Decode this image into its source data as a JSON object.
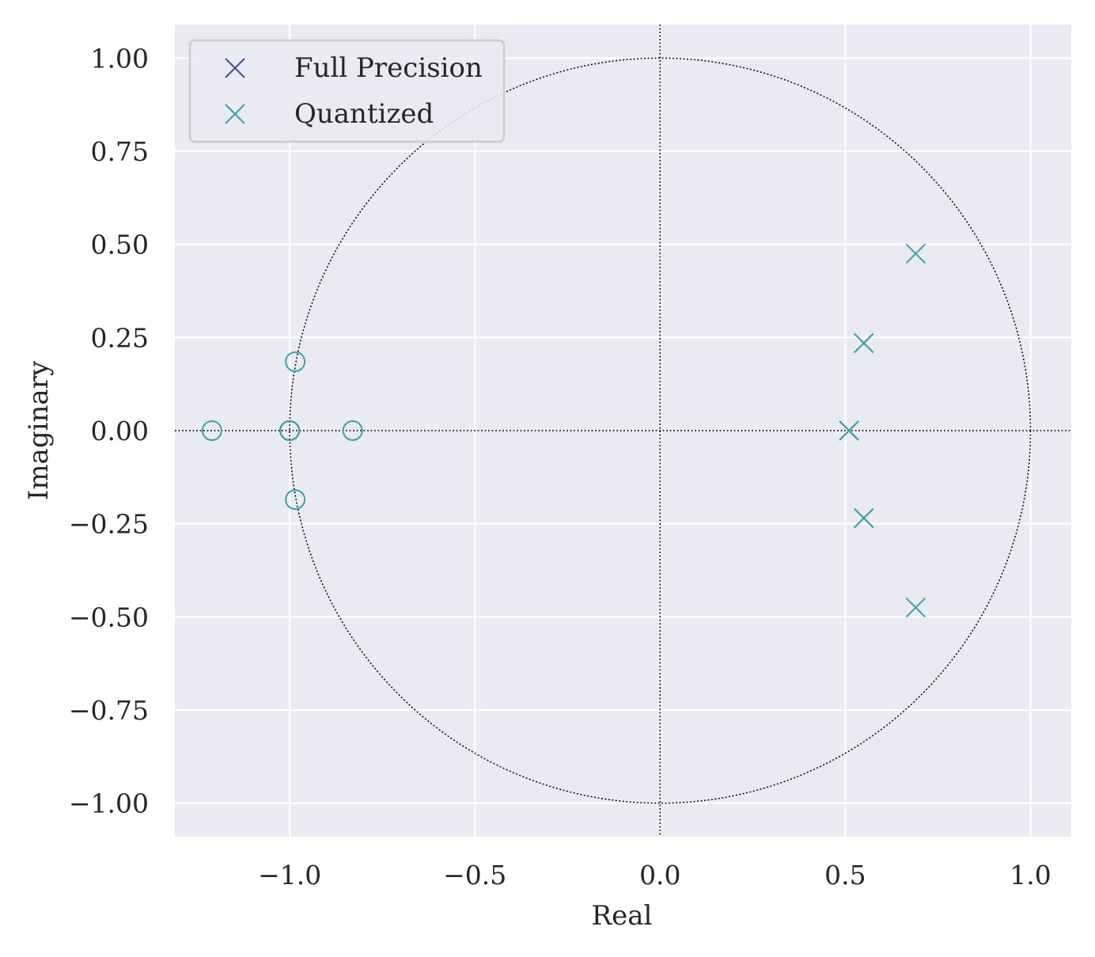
{
  "chart_data": {
    "type": "scatter",
    "title": "",
    "xlabel": "Real",
    "ylabel": "Imaginary",
    "xlim": [
      -1.31,
      1.11
    ],
    "ylim": [
      -1.09,
      1.09
    ],
    "xticks": [
      -1.0,
      -0.5,
      0.0,
      0.5,
      1.0
    ],
    "xtick_labels": [
      "−1.0",
      "−0.5",
      "0.0",
      "0.5",
      "1.0"
    ],
    "yticks": [
      1.0,
      0.75,
      0.5,
      0.25,
      0.0,
      -0.25,
      -0.5,
      -0.75,
      -1.0
    ],
    "ytick_labels": [
      "1.00",
      "0.75",
      "0.50",
      "0.25",
      "0.00",
      "−0.25",
      "−0.50",
      "−0.75",
      "−1.00"
    ],
    "grid": true,
    "unit_circle": true,
    "legend_position": "top-left",
    "series": [
      {
        "name": "Full Precision",
        "color": "#4a4a9a",
        "poles": [
          {
            "x": 0.51,
            "y": 0.0
          },
          {
            "x": 0.55,
            "y": 0.235
          },
          {
            "x": 0.55,
            "y": -0.235
          }
        ],
        "zeros": [
          {
            "x": -1.0,
            "y": 0.0
          },
          {
            "x": -1.0,
            "y": 0.0
          }
        ]
      },
      {
        "name": "Quantized",
        "color": "#38a5a5",
        "poles": [
          {
            "x": 0.51,
            "y": 0.0
          },
          {
            "x": 0.55,
            "y": 0.235
          },
          {
            "x": 0.55,
            "y": -0.235
          },
          {
            "x": 0.69,
            "y": 0.475
          },
          {
            "x": 0.69,
            "y": -0.475
          }
        ],
        "zeros": [
          {
            "x": -1.21,
            "y": 0.0
          },
          {
            "x": -1.0,
            "y": 0.0
          },
          {
            "x": -0.83,
            "y": 0.0
          },
          {
            "x": -0.985,
            "y": 0.185
          },
          {
            "x": -0.985,
            "y": -0.185
          }
        ]
      }
    ]
  }
}
